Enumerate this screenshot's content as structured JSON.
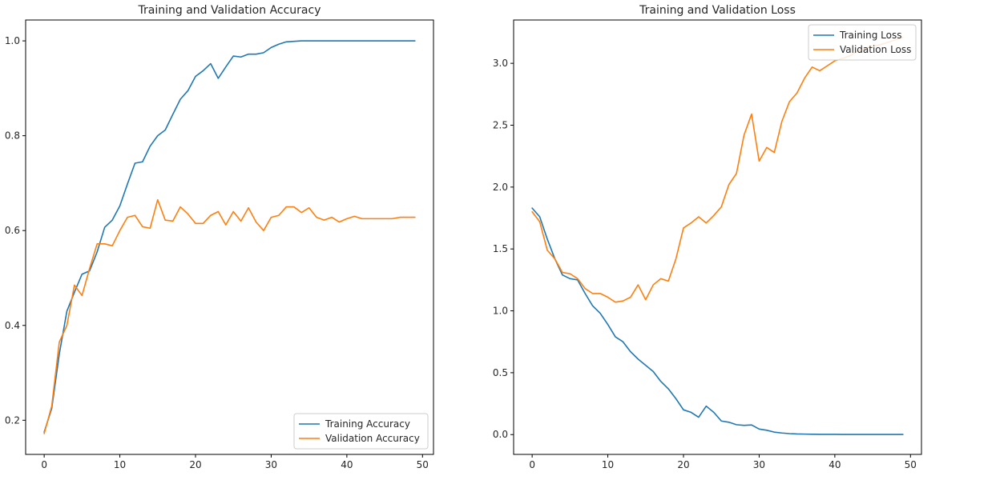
{
  "chart_data": [
    {
      "type": "line",
      "title": "Training and Validation Accuracy",
      "xlim": [
        -2.45,
        51.45
      ],
      "ylim": [
        0.128,
        1.044
      ],
      "xticks": [
        0,
        10,
        20,
        30,
        40,
        50
      ],
      "yticks": [
        0.2,
        0.4,
        0.6,
        0.8,
        1.0
      ],
      "ytick_labels": [
        "0.2",
        "0.4",
        "0.6",
        "0.8",
        "1.0"
      ],
      "legend_position": "lower-right",
      "x": [
        0,
        1,
        2,
        3,
        4,
        5,
        6,
        7,
        8,
        9,
        10,
        11,
        12,
        13,
        14,
        15,
        16,
        17,
        18,
        19,
        20,
        21,
        22,
        23,
        24,
        25,
        26,
        27,
        28,
        29,
        30,
        31,
        32,
        33,
        34,
        35,
        36,
        37,
        38,
        39,
        40,
        41,
        42,
        43,
        44,
        45,
        46,
        47,
        48,
        49
      ],
      "series": [
        {
          "name": "Training Accuracy",
          "color": "#1f77b4",
          "values": [
            0.175,
            0.225,
            0.34,
            0.43,
            0.47,
            0.508,
            0.515,
            0.555,
            0.607,
            0.622,
            0.652,
            0.698,
            0.742,
            0.745,
            0.778,
            0.8,
            0.812,
            0.845,
            0.877,
            0.895,
            0.925,
            0.937,
            0.952,
            0.921,
            0.945,
            0.968,
            0.966,
            0.972,
            0.972,
            0.975,
            0.986,
            0.993,
            0.998,
            0.999,
            1.0,
            1.0,
            1.0,
            1.0,
            1.0,
            1.0,
            1.0,
            1.0,
            1.0,
            1.0,
            1.0,
            1.0,
            1.0,
            1.0,
            1.0,
            1.0
          ]
        },
        {
          "name": "Validation Accuracy",
          "color": "#ff7f0e",
          "values": [
            0.172,
            0.23,
            0.365,
            0.4,
            0.485,
            0.463,
            0.52,
            0.572,
            0.572,
            0.568,
            0.6,
            0.628,
            0.632,
            0.608,
            0.605,
            0.665,
            0.622,
            0.62,
            0.65,
            0.635,
            0.615,
            0.615,
            0.632,
            0.64,
            0.612,
            0.64,
            0.62,
            0.648,
            0.618,
            0.6,
            0.628,
            0.632,
            0.65,
            0.65,
            0.638,
            0.648,
            0.628,
            0.622,
            0.628,
            0.618,
            0.625,
            0.63,
            0.625,
            0.625,
            0.625,
            0.625,
            0.625,
            0.628,
            0.628,
            0.628
          ]
        }
      ]
    },
    {
      "type": "line",
      "title": "Training and Validation Loss",
      "xlim": [
        -2.45,
        51.45
      ],
      "ylim": [
        -0.16,
        3.35
      ],
      "xticks": [
        0,
        10,
        20,
        30,
        40,
        50
      ],
      "yticks": [
        0.0,
        0.5,
        1.0,
        1.5,
        2.0,
        2.5,
        3.0
      ],
      "ytick_labels": [
        "0.0",
        "0.5",
        "1.0",
        "1.5",
        "2.0",
        "2.5",
        "3.0"
      ],
      "legend_position": "upper-right",
      "x": [
        0,
        1,
        2,
        3,
        4,
        5,
        6,
        7,
        8,
        9,
        10,
        11,
        12,
        13,
        14,
        15,
        16,
        17,
        18,
        19,
        20,
        21,
        22,
        23,
        24,
        25,
        26,
        27,
        28,
        29,
        30,
        31,
        32,
        33,
        34,
        35,
        36,
        37,
        38,
        39,
        40,
        41,
        42,
        43,
        44,
        45,
        46,
        47,
        48,
        49
      ],
      "series": [
        {
          "name": "Training Loss",
          "color": "#1f77b4",
          "values": [
            1.83,
            1.76,
            1.58,
            1.42,
            1.29,
            1.26,
            1.25,
            1.14,
            1.04,
            0.98,
            0.89,
            0.79,
            0.75,
            0.67,
            0.61,
            0.56,
            0.51,
            0.43,
            0.37,
            0.29,
            0.2,
            0.18,
            0.14,
            0.23,
            0.18,
            0.11,
            0.1,
            0.08,
            0.075,
            0.078,
            0.045,
            0.035,
            0.02,
            0.013,
            0.008,
            0.005,
            0.004,
            0.003,
            0.002,
            0.002,
            0.002,
            0.001,
            0.001,
            0.001,
            0.001,
            0.001,
            0.001,
            0.001,
            0.001,
            0.001
          ]
        },
        {
          "name": "Validation Loss",
          "color": "#ff7f0e",
          "values": [
            1.8,
            1.72,
            1.49,
            1.42,
            1.31,
            1.3,
            1.26,
            1.18,
            1.14,
            1.14,
            1.11,
            1.07,
            1.08,
            1.11,
            1.21,
            1.09,
            1.21,
            1.26,
            1.24,
            1.42,
            1.67,
            1.71,
            1.76,
            1.71,
            1.77,
            1.84,
            2.02,
            2.11,
            2.42,
            2.59,
            2.21,
            2.32,
            2.28,
            2.53,
            2.69,
            2.76,
            2.88,
            2.97,
            2.94,
            2.98,
            3.02,
            3.04,
            3.06,
            3.1,
            3.12,
            3.14,
            3.15,
            3.17,
            3.19,
            3.21
          ]
        }
      ]
    }
  ]
}
